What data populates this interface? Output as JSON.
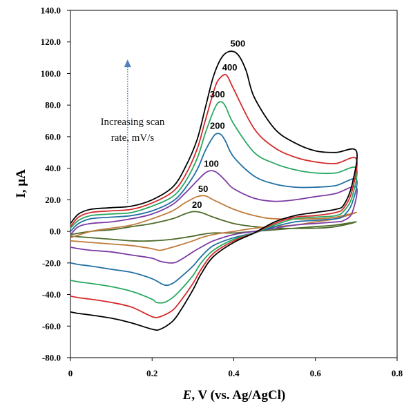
{
  "chart_data": {
    "type": "line",
    "title": "",
    "xlabel_italic": "E",
    "xlabel_rest": ", V (vs. Ag/AgCl)",
    "ylabel": "I, μA",
    "xlim": [
      0,
      0.8
    ],
    "ylim": [
      -80,
      140
    ],
    "x_ticks": [
      0,
      0.2,
      0.4,
      0.6,
      0.8
    ],
    "x_tick_labels": [
      "0",
      "0.2",
      "0.4",
      "0.6",
      "0.8"
    ],
    "y_ticks": [
      -80,
      -60,
      -40,
      -20,
      0,
      20,
      40,
      60,
      80,
      100,
      120,
      140
    ],
    "y_tick_labels": [
      "-80.0",
      "-60.0",
      "-40.0",
      "-20.0",
      "0.0",
      "20.0",
      "40.0",
      "60.0",
      "80.0",
      "100.0",
      "120.0",
      "140.0"
    ],
    "grid": false,
    "legend": "none",
    "annotation": {
      "lines": [
        "Increasing scan",
        "rate, mV/s"
      ],
      "arrow": {
        "x": 0.14,
        "y_from": 18,
        "y_to": 108
      },
      "arrow_color": "#4f81bd"
    },
    "series": [
      {
        "label": "20",
        "color": "#4e6b2a",
        "anodic": [
          [
            0,
            -2
          ],
          [
            0.05,
            0
          ],
          [
            0.1,
            1
          ],
          [
            0.15,
            3
          ],
          [
            0.2,
            5
          ],
          [
            0.25,
            8
          ],
          [
            0.28,
            11
          ],
          [
            0.3,
            12.5
          ],
          [
            0.32,
            12
          ],
          [
            0.35,
            9
          ],
          [
            0.4,
            5
          ],
          [
            0.45,
            3
          ],
          [
            0.5,
            2
          ],
          [
            0.6,
            2
          ],
          [
            0.65,
            3
          ],
          [
            0.7,
            6
          ]
        ],
        "cathodic": [
          [
            0.7,
            7
          ],
          [
            0.65,
            4
          ],
          [
            0.6,
            3
          ],
          [
            0.55,
            2
          ],
          [
            0.5,
            1
          ],
          [
            0.45,
            0
          ],
          [
            0.4,
            -1
          ],
          [
            0.35,
            -1
          ],
          [
            0.32,
            -2
          ],
          [
            0.3,
            -3
          ],
          [
            0.25,
            -5
          ],
          [
            0.2,
            -6
          ],
          [
            0.15,
            -6
          ],
          [
            0.1,
            -5
          ],
          [
            0.05,
            -4
          ],
          [
            0,
            -3
          ]
        ],
        "label_pos": [
          0.31,
          15
        ]
      },
      {
        "label": "50",
        "color": "#c07a3a",
        "anodic": [
          [
            0,
            -4
          ],
          [
            0.05,
            0
          ],
          [
            0.1,
            2
          ],
          [
            0.15,
            4
          ],
          [
            0.2,
            8
          ],
          [
            0.25,
            13
          ],
          [
            0.28,
            18
          ],
          [
            0.31,
            22
          ],
          [
            0.33,
            22.5
          ],
          [
            0.35,
            20
          ],
          [
            0.4,
            14
          ],
          [
            0.45,
            10
          ],
          [
            0.5,
            8
          ],
          [
            0.6,
            8
          ],
          [
            0.65,
            9
          ],
          [
            0.7,
            12
          ]
        ],
        "cathodic": [
          [
            0.7,
            12
          ],
          [
            0.65,
            8
          ],
          [
            0.6,
            6
          ],
          [
            0.55,
            4
          ],
          [
            0.5,
            3
          ],
          [
            0.45,
            2
          ],
          [
            0.4,
            0
          ],
          [
            0.35,
            -2
          ],
          [
            0.32,
            -4
          ],
          [
            0.3,
            -6
          ],
          [
            0.25,
            -10
          ],
          [
            0.22,
            -12
          ],
          [
            0.2,
            -11
          ],
          [
            0.15,
            -9
          ],
          [
            0.1,
            -8
          ],
          [
            0.05,
            -7
          ],
          [
            0,
            -6
          ]
        ],
        "label_pos": [
          0.325,
          25
        ]
      },
      {
        "label": "100",
        "color": "#7b3aa3",
        "anodic": [
          [
            0,
            -2
          ],
          [
            0.02,
            3
          ],
          [
            0.05,
            5
          ],
          [
            0.1,
            6
          ],
          [
            0.15,
            8
          ],
          [
            0.2,
            11
          ],
          [
            0.25,
            17
          ],
          [
            0.28,
            24
          ],
          [
            0.31,
            32
          ],
          [
            0.33,
            37
          ],
          [
            0.345,
            38.5
          ],
          [
            0.36,
            37
          ],
          [
            0.38,
            32
          ],
          [
            0.4,
            27
          ],
          [
            0.45,
            21
          ],
          [
            0.5,
            19
          ],
          [
            0.55,
            20
          ],
          [
            0.6,
            22
          ],
          [
            0.65,
            24
          ],
          [
            0.7,
            28
          ]
        ],
        "cathodic": [
          [
            0.7,
            28
          ],
          [
            0.69,
            12
          ],
          [
            0.67,
            7
          ],
          [
            0.65,
            6
          ],
          [
            0.6,
            5
          ],
          [
            0.55,
            4
          ],
          [
            0.5,
            2
          ],
          [
            0.45,
            0
          ],
          [
            0.4,
            -2
          ],
          [
            0.35,
            -6
          ],
          [
            0.32,
            -10
          ],
          [
            0.3,
            -13
          ],
          [
            0.27,
            -18
          ],
          [
            0.25,
            -20
          ],
          [
            0.22,
            -19
          ],
          [
            0.2,
            -17
          ],
          [
            0.15,
            -15
          ],
          [
            0.1,
            -13
          ],
          [
            0.05,
            -12
          ],
          [
            0.02,
            -11
          ],
          [
            0,
            -10
          ]
        ],
        "label_pos": [
          0.345,
          41
        ]
      },
      {
        "label": "200",
        "color": "#1f6fa3",
        "anodic": [
          [
            0,
            0
          ],
          [
            0.02,
            5
          ],
          [
            0.05,
            8
          ],
          [
            0.1,
            9
          ],
          [
            0.15,
            10
          ],
          [
            0.2,
            13
          ],
          [
            0.25,
            19
          ],
          [
            0.28,
            27
          ],
          [
            0.31,
            39
          ],
          [
            0.33,
            51
          ],
          [
            0.35,
            60
          ],
          [
            0.36,
            62
          ],
          [
            0.37,
            61
          ],
          [
            0.38,
            57
          ],
          [
            0.4,
            47
          ],
          [
            0.45,
            35
          ],
          [
            0.5,
            30
          ],
          [
            0.55,
            28
          ],
          [
            0.6,
            28
          ],
          [
            0.65,
            29
          ],
          [
            0.7,
            33
          ]
        ],
        "cathodic": [
          [
            0.7,
            33
          ],
          [
            0.69,
            18
          ],
          [
            0.67,
            10
          ],
          [
            0.65,
            8
          ],
          [
            0.6,
            7
          ],
          [
            0.55,
            6
          ],
          [
            0.5,
            3
          ],
          [
            0.45,
            -1
          ],
          [
            0.4,
            -4
          ],
          [
            0.35,
            -9
          ],
          [
            0.32,
            -16
          ],
          [
            0.3,
            -22
          ],
          [
            0.27,
            -29
          ],
          [
            0.25,
            -33
          ],
          [
            0.23,
            -34
          ],
          [
            0.2,
            -30
          ],
          [
            0.15,
            -26
          ],
          [
            0.1,
            -24
          ],
          [
            0.05,
            -22
          ],
          [
            0.02,
            -21
          ],
          [
            0,
            -20
          ]
        ],
        "label_pos": [
          0.36,
          65
        ]
      },
      {
        "label": "300",
        "color": "#2aa860",
        "anodic": [
          [
            0,
            2
          ],
          [
            0.02,
            7
          ],
          [
            0.05,
            10
          ],
          [
            0.1,
            11
          ],
          [
            0.15,
            12
          ],
          [
            0.2,
            16
          ],
          [
            0.25,
            22
          ],
          [
            0.28,
            31
          ],
          [
            0.31,
            46
          ],
          [
            0.33,
            62
          ],
          [
            0.35,
            76
          ],
          [
            0.36,
            81
          ],
          [
            0.37,
            82
          ],
          [
            0.38,
            79
          ],
          [
            0.4,
            68
          ],
          [
            0.45,
            50
          ],
          [
            0.5,
            43
          ],
          [
            0.55,
            39
          ],
          [
            0.6,
            37
          ],
          [
            0.65,
            37
          ],
          [
            0.7,
            40
          ]
        ],
        "cathodic": [
          [
            0.7,
            40
          ],
          [
            0.69,
            22
          ],
          [
            0.67,
            13
          ],
          [
            0.65,
            10
          ],
          [
            0.6,
            9
          ],
          [
            0.55,
            8
          ],
          [
            0.5,
            4
          ],
          [
            0.45,
            -1
          ],
          [
            0.4,
            -5
          ],
          [
            0.35,
            -12
          ],
          [
            0.32,
            -20
          ],
          [
            0.3,
            -28
          ],
          [
            0.27,
            -37
          ],
          [
            0.25,
            -42
          ],
          [
            0.23,
            -45
          ],
          [
            0.21,
            -45
          ],
          [
            0.2,
            -43
          ],
          [
            0.15,
            -38
          ],
          [
            0.1,
            -35
          ],
          [
            0.05,
            -33
          ],
          [
            0.02,
            -32
          ],
          [
            0,
            -31
          ]
        ],
        "label_pos": [
          0.36,
          85
        ]
      },
      {
        "label": "400",
        "color": "#d42a2a",
        "anodic": [
          [
            0,
            3
          ],
          [
            0.02,
            9
          ],
          [
            0.05,
            12
          ],
          [
            0.1,
            13
          ],
          [
            0.15,
            14
          ],
          [
            0.2,
            18
          ],
          [
            0.25,
            25
          ],
          [
            0.28,
            35
          ],
          [
            0.31,
            52
          ],
          [
            0.33,
            70
          ],
          [
            0.35,
            88
          ],
          [
            0.36,
            95
          ],
          [
            0.375,
            99
          ],
          [
            0.385,
            98
          ],
          [
            0.4,
            90
          ],
          [
            0.45,
            65
          ],
          [
            0.5,
            53
          ],
          [
            0.55,
            47
          ],
          [
            0.6,
            44
          ],
          [
            0.65,
            43
          ],
          [
            0.7,
            46
          ]
        ],
        "cathodic": [
          [
            0.7,
            46
          ],
          [
            0.69,
            26
          ],
          [
            0.67,
            15
          ],
          [
            0.65,
            12
          ],
          [
            0.6,
            10
          ],
          [
            0.55,
            9
          ],
          [
            0.5,
            5
          ],
          [
            0.45,
            -1
          ],
          [
            0.4,
            -6
          ],
          [
            0.35,
            -14
          ],
          [
            0.32,
            -24
          ],
          [
            0.3,
            -33
          ],
          [
            0.27,
            -44
          ],
          [
            0.25,
            -50
          ],
          [
            0.22,
            -54
          ],
          [
            0.2,
            -54
          ],
          [
            0.15,
            -48
          ],
          [
            0.1,
            -45
          ],
          [
            0.05,
            -43
          ],
          [
            0.02,
            -42
          ],
          [
            0,
            -41
          ]
        ],
        "label_pos": [
          0.39,
          102
        ]
      },
      {
        "label": "500",
        "color": "#000000",
        "anodic": [
          [
            0,
            5
          ],
          [
            0.02,
            11
          ],
          [
            0.05,
            14
          ],
          [
            0.1,
            15
          ],
          [
            0.15,
            16
          ],
          [
            0.2,
            20
          ],
          [
            0.25,
            28
          ],
          [
            0.28,
            40
          ],
          [
            0.31,
            58
          ],
          [
            0.33,
            78
          ],
          [
            0.35,
            98
          ],
          [
            0.37,
            110
          ],
          [
            0.39,
            114
          ],
          [
            0.41,
            112
          ],
          [
            0.43,
            102
          ],
          [
            0.45,
            85
          ],
          [
            0.5,
            65
          ],
          [
            0.55,
            56
          ],
          [
            0.6,
            51
          ],
          [
            0.65,
            50
          ],
          [
            0.7,
            51
          ]
        ],
        "cathodic": [
          [
            0.7,
            51
          ],
          [
            0.69,
            30
          ],
          [
            0.67,
            17
          ],
          [
            0.65,
            14
          ],
          [
            0.6,
            12
          ],
          [
            0.55,
            10
          ],
          [
            0.5,
            6
          ],
          [
            0.45,
            -1
          ],
          [
            0.4,
            -7
          ],
          [
            0.35,
            -16
          ],
          [
            0.32,
            -27
          ],
          [
            0.3,
            -37
          ],
          [
            0.27,
            -50
          ],
          [
            0.25,
            -57
          ],
          [
            0.22,
            -62
          ],
          [
            0.2,
            -62
          ],
          [
            0.15,
            -58
          ],
          [
            0.1,
            -55
          ],
          [
            0.05,
            -53
          ],
          [
            0.02,
            -52
          ],
          [
            0,
            -51
          ]
        ],
        "label_pos": [
          0.41,
          117
        ]
      }
    ]
  }
}
